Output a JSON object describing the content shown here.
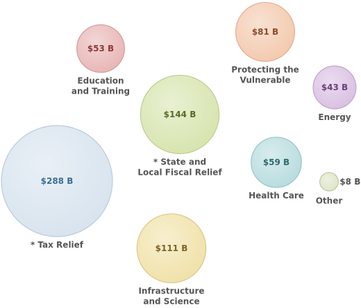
{
  "chart_data": {
    "type": "bubble",
    "title": "",
    "unit": "$ B",
    "series": [
      {
        "name": "Budget allocation",
        "categories": [
          "Education and Training",
          "Protecting the Vulnerable",
          "Energy",
          "* State and Local Fiscal Relief",
          "* Tax Relief",
          "Health Care",
          "Other",
          "Infrastructure and Science"
        ],
        "values": [
          53,
          81,
          43,
          144,
          288,
          59,
          8,
          111
        ]
      }
    ],
    "bubbles": [
      {
        "id": "education",
        "value": 53,
        "value_label": "$53 B",
        "label_lines": [
          "Education",
          "and Training"
        ],
        "fill": "#e8b5b5",
        "stroke": "#d49b9b",
        "text_color": "#8b3a3a"
      },
      {
        "id": "vulnerable",
        "value": 81,
        "value_label": "$81 B",
        "label_lines": [
          "Protecting the",
          "Vulnerable"
        ],
        "fill": "#f3c9ad",
        "stroke": "#e0ad8f",
        "text_color": "#8b4a2f"
      },
      {
        "id": "energy",
        "value": 43,
        "value_label": "$43 B",
        "label_lines": [
          "Energy"
        ],
        "fill": "#d9bfe2",
        "stroke": "#c2a3cc",
        "text_color": "#6b3f7d"
      },
      {
        "id": "state-fiscal",
        "value": 144,
        "value_label": "$144 B",
        "label_lines": [
          "* State and",
          "Local Fiscal Relief"
        ],
        "fill": "#d6e4ad",
        "stroke": "#bccd8f",
        "text_color": "#5b6a2b"
      },
      {
        "id": "tax",
        "value": 288,
        "value_label": "$288 B",
        "label_lines": [
          "* Tax Relief"
        ],
        "fill": "#d7e3ee",
        "stroke": "#bccada",
        "text_color": "#3e6d93"
      },
      {
        "id": "health",
        "value": 59,
        "value_label": "$59 B",
        "label_lines": [
          "Health Care"
        ],
        "fill": "#b7dcde",
        "stroke": "#98c4c7",
        "text_color": "#2f6a70"
      },
      {
        "id": "other",
        "value": 8,
        "value_label": "$8 B",
        "label_lines": [
          "Other"
        ],
        "fill": "#dde5c7",
        "stroke": "#bdc7a3",
        "text_color": "#555555"
      },
      {
        "id": "infrastructure",
        "value": 111,
        "value_label": "$111 B",
        "label_lines": [
          "Infrastructure",
          "and Science"
        ],
        "fill": "#f0e1a8",
        "stroke": "#d9c78a",
        "text_color": "#7b6428"
      }
    ]
  }
}
